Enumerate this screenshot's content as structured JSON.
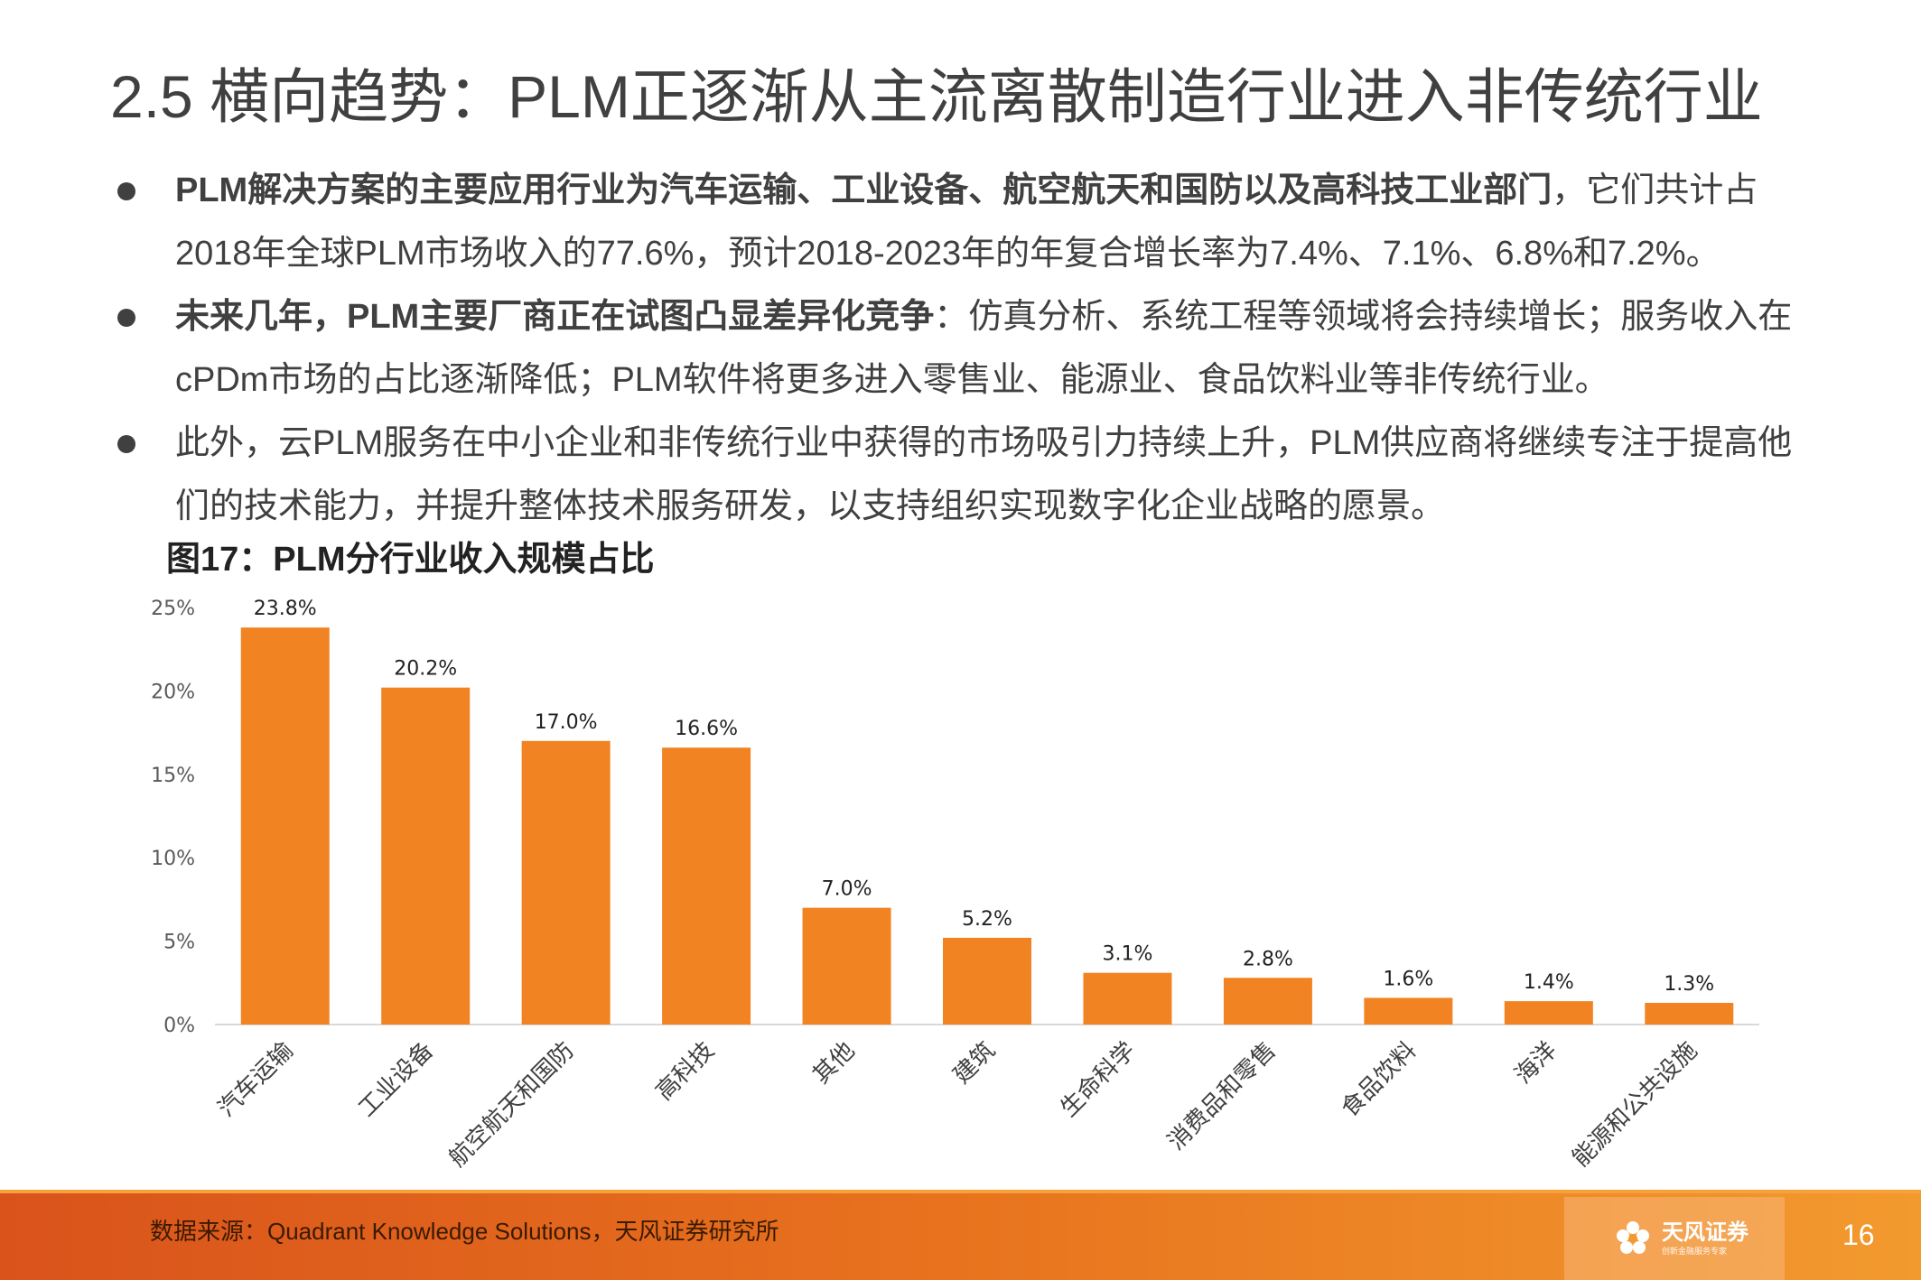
{
  "slide": {
    "title": "2.5 横向趋势：PLM正逐渐从主流离散制造行业进入非传统行业",
    "page_number": "16"
  },
  "bullets": [
    {
      "bold": "PLM解决方案的主要应用行业为汽车运输、工业设备、航空航天和国防以及高科技工业部门",
      "text": "，它们共计占2018年全球PLM市场收入的77.6%，预计2018-2023年的年复合增长率为7.4%、7.1%、6.8%和7.2%。"
    },
    {
      "bold": "未来几年，PLM主要厂商正在试图凸显差异化竞争",
      "text": "：仿真分析、系统工程等领域将会持续增长；服务收入在cPDm市场的占比逐渐降低；PLM软件将更多进入零售业、能源业、食品饮料业等非传统行业。"
    },
    {
      "bold": "",
      "text": "此外，云PLM服务在中小企业和非传统行业中获得的市场吸引力持续上升，PLM供应商将继续专注于提高他们的技术能力，并提升整体技术服务研发，以支持组织实现数字化企业战略的愿景。"
    }
  ],
  "figure": {
    "title": "图17：PLM分行业收入规模占比"
  },
  "chart_data": {
    "type": "bar",
    "categories": [
      "汽车运输",
      "工业设备",
      "航空航天和国防",
      "高科技",
      "其他",
      "建筑",
      "生命科学",
      "消费品和零售",
      "食品饮料",
      "海洋",
      "能源和公共设施"
    ],
    "values": [
      23.8,
      20.2,
      17.0,
      16.6,
      7.0,
      5.2,
      3.1,
      2.8,
      1.6,
      1.4,
      1.3
    ],
    "data_labels": [
      "23.8%",
      "20.2%",
      "17.0%",
      "16.6%",
      "7.0%",
      "5.2%",
      "3.1%",
      "2.8%",
      "1.6%",
      "1.4%",
      "1.3%"
    ],
    "y_ticks": [
      "0%",
      "5%",
      "10%",
      "15%",
      "20%",
      "25%"
    ],
    "ylim": [
      0,
      25
    ],
    "bar_color": "#f28322",
    "grid": false,
    "legend": "none"
  },
  "footer": {
    "source": "数据来源：Quadrant Knowledge Solutions，天风证券研究所",
    "logo_text": "天风证券",
    "logo_sub": "创新金融服务专家"
  },
  "colors": {
    "footer_orange": "#e8731e",
    "text_gray": "#404040"
  }
}
